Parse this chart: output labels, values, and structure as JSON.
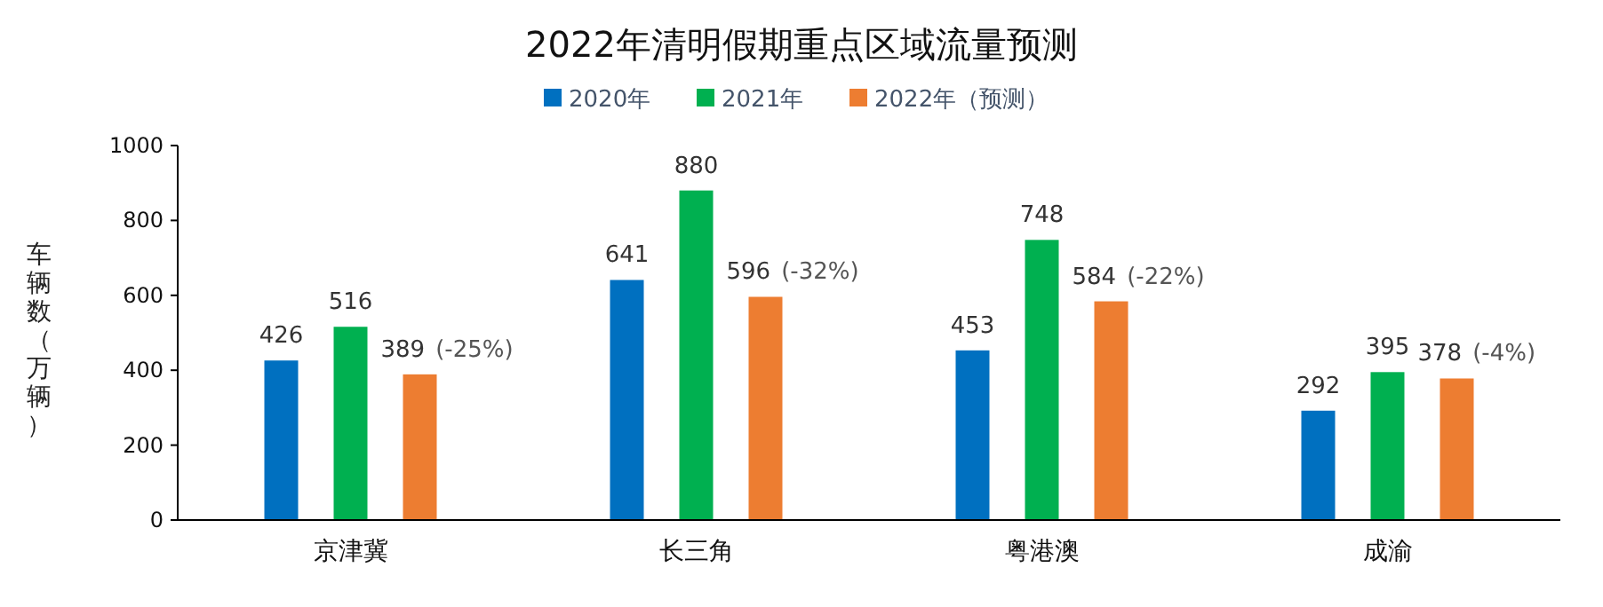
{
  "chart_data": {
    "type": "bar",
    "title": "2022年清明假期重点区域流量预测",
    "ylabel": "车辆数（万辆）",
    "categories": [
      "京津冀",
      "长三角",
      "粤港澳",
      "成渝"
    ],
    "series": [
      {
        "name": "2020年",
        "color": "#0070c0",
        "values": [
          426,
          641,
          453,
          292
        ],
        "value_labels": [
          "426",
          "641",
          "453",
          "292"
        ]
      },
      {
        "name": "2021年",
        "color": "#00b050",
        "values": [
          516,
          880,
          748,
          395
        ],
        "value_labels": [
          "516",
          "880",
          "748",
          "395"
        ]
      },
      {
        "name": "2022年（预测）",
        "color": "#ed7d31",
        "values": [
          389,
          596,
          584,
          378
        ],
        "value_labels": [
          "389 (-25%)",
          "596 (-32%)",
          "584 (-22%)",
          "378 (-4%)"
        ]
      }
    ],
    "ylim": [
      0,
      1000
    ],
    "yticks": [
      0,
      200,
      400,
      600,
      800,
      1000
    ],
    "legend": "top",
    "grid": false
  }
}
